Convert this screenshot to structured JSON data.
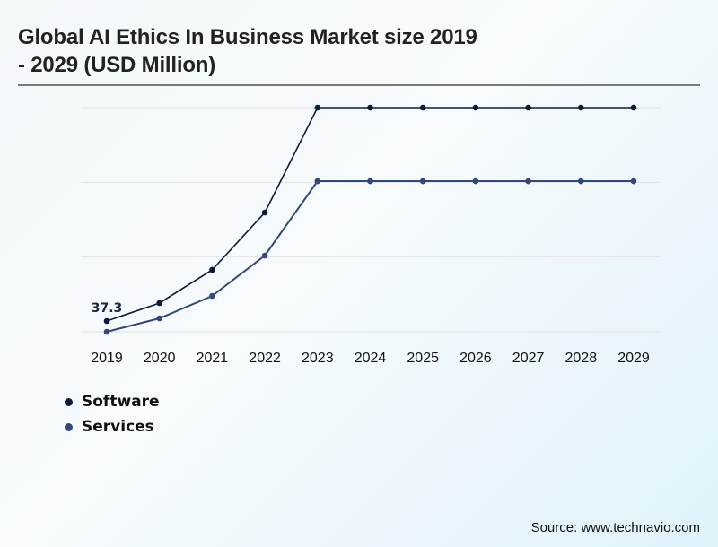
{
  "title": {
    "line1": "Global AI Ethics In Business Market size 2019",
    "line2": "- 2029 (USD Million)"
  },
  "source": "Source: www.technavio.com",
  "chart_data": {
    "type": "line",
    "title": "Global AI Ethics In Business Market size 2019 - 2029 (USD Million)",
    "xlabel": "",
    "ylabel": "USD Million",
    "x": [
      "2019",
      "2020",
      "2021",
      "2022",
      "2023",
      "2024",
      "2025",
      "2026",
      "2027",
      "2028",
      "2029"
    ],
    "ylim": [
      0,
      777
    ],
    "y_gridlines": 4,
    "grid": true,
    "y_tick_labels_visible": false,
    "legend_position": "bottom-left",
    "series": [
      {
        "name": "Software",
        "color": "#0d1b3e",
        "values": [
          37.3,
          99.5,
          214.5,
          413.4,
          777,
          777,
          777,
          777,
          777,
          777,
          777
        ]
      },
      {
        "name": "Services",
        "color": "#34477a",
        "values": [
          0,
          46.6,
          124.3,
          264.2,
          522.1,
          522.1,
          522.1,
          522.1,
          522.1,
          522.1,
          522.1
        ]
      }
    ],
    "annotations": [
      {
        "series": "Software",
        "x": "2019",
        "text": "37.3"
      }
    ]
  }
}
